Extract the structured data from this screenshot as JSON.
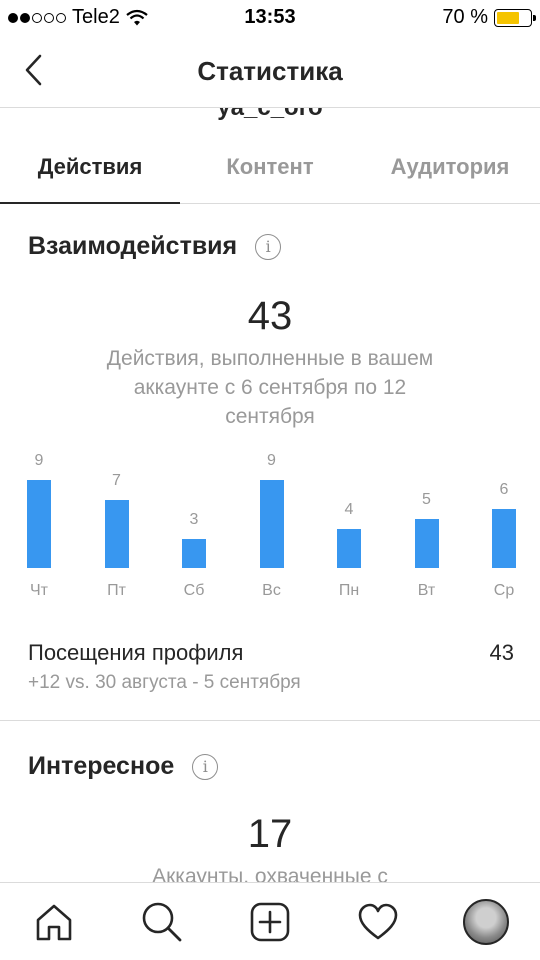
{
  "status_bar": {
    "carrier": "Tele2",
    "time": "13:53",
    "battery": "70 %",
    "battery_level": 0.7
  },
  "header": {
    "title": "Статистика",
    "username_peek": "ya_c_oro"
  },
  "tabs": [
    {
      "label": "Действия",
      "active": true
    },
    {
      "label": "Контент",
      "active": false
    },
    {
      "label": "Аудитория",
      "active": false
    }
  ],
  "interactions": {
    "title": "Взаимодействия",
    "total": "43",
    "caption": "Действия, выполненные в вашем аккаунте с 6 сентября по 12 сентября"
  },
  "chart_data": {
    "type": "bar",
    "categories": [
      "Чт",
      "Пт",
      "Сб",
      "Вс",
      "Пн",
      "Вт",
      "Ср"
    ],
    "values": [
      9,
      7,
      3,
      9,
      4,
      5,
      6
    ],
    "ylim": [
      0,
      9
    ],
    "color": "#3897f0"
  },
  "profile_visits": {
    "label": "Посещения профиля",
    "value": "43",
    "delta": "+12 vs. 30 августа - 5 сентября"
  },
  "discovery": {
    "title": "Интересное",
    "total": "17",
    "caption": "Аккаунты, охваченные с"
  },
  "bottom_nav": [
    "home-icon",
    "search-icon",
    "add-icon",
    "heart-icon",
    "profile-avatar"
  ]
}
